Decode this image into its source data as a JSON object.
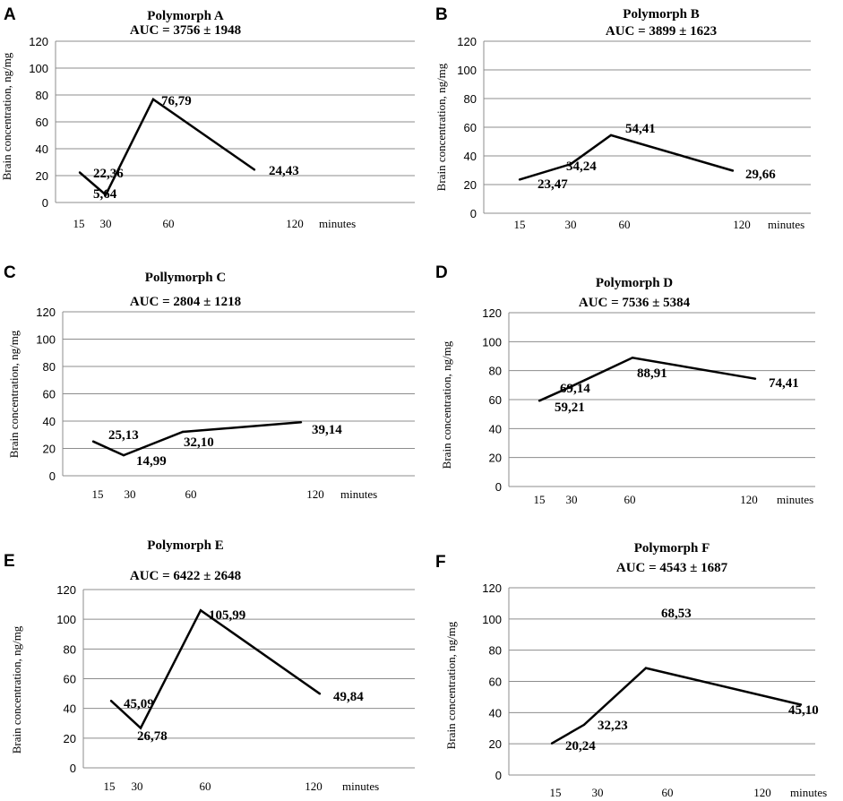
{
  "chart_data": [
    {
      "panel": "A",
      "type": "line",
      "title": "Polymorph A",
      "auc_prefix": "AUC =",
      "auc_mean": "3756",
      "auc_pm": "±",
      "auc_sd": "1948",
      "ylabel": "Brain concentration, ng/mg",
      "x_ticks": [
        "15",
        "30",
        "60",
        "120"
      ],
      "x_unit": "minutes",
      "x": [
        15,
        30,
        60,
        120
      ],
      "values": [
        22.36,
        5.64,
        76.79,
        24.43
      ],
      "data_labels": [
        "22,36",
        "5,64",
        "76,79",
        "24,43"
      ],
      "ylim": [
        0,
        120
      ],
      "y_ticks": [
        "0",
        "20",
        "40",
        "60",
        "80",
        "100",
        "120"
      ],
      "grid": true
    },
    {
      "panel": "B",
      "type": "line",
      "title": "Polymorph B",
      "auc_prefix": "AUC =",
      "auc_mean": "3899",
      "auc_pm": "±",
      "auc_sd": "1623",
      "ylabel": "Brain concentration, ng/mg",
      "x_ticks": [
        "15",
        "30",
        "60",
        "120"
      ],
      "x_unit": "minutes",
      "x": [
        15,
        30,
        60,
        120
      ],
      "values": [
        23.47,
        34.24,
        54.41,
        29.66
      ],
      "data_labels": [
        "23,47",
        "34,24",
        "54,41",
        "29,66"
      ],
      "ylim": [
        0,
        120
      ],
      "y_ticks": [
        "0",
        "20",
        "40",
        "60",
        "80",
        "100",
        "120"
      ],
      "grid": true
    },
    {
      "panel": "C",
      "type": "line",
      "title": "Pollymorph C",
      "auc_prefix": "AUC =",
      "auc_mean": "2804",
      "auc_pm": "±",
      "auc_sd": "1218",
      "ylabel": "Brain concentration, ng/mg",
      "x_ticks": [
        "15",
        "30",
        "60",
        "120"
      ],
      "x_unit": "minutes",
      "x": [
        15,
        30,
        60,
        120
      ],
      "values": [
        25.13,
        14.99,
        32.1,
        39.14
      ],
      "data_labels": [
        "25,13",
        "14,99",
        "32,10",
        "39,14"
      ],
      "ylim": [
        0,
        120
      ],
      "y_ticks": [
        "0",
        "20",
        "40",
        "60",
        "80",
        "100",
        "120"
      ],
      "grid": true
    },
    {
      "panel": "D",
      "type": "line",
      "title": "Polymorph D",
      "auc_prefix": "AUC =",
      "auc_mean": "7536",
      "auc_pm": "±",
      "auc_sd": "5384",
      "ylabel": "Brain concentration, ng/mg",
      "x_ticks": [
        "15",
        "30",
        "60",
        "120"
      ],
      "x_unit": "minutes",
      "x": [
        15,
        30,
        60,
        120
      ],
      "values": [
        59.21,
        69.14,
        88.91,
        74.41
      ],
      "data_labels": [
        "59,21",
        "69,14",
        "88,91",
        "74,41"
      ],
      "ylim": [
        0,
        120
      ],
      "y_ticks": [
        "0",
        "20",
        "40",
        "60",
        "80",
        "100",
        "120"
      ],
      "grid": true
    },
    {
      "panel": "E",
      "type": "line",
      "title": "Polymorph E",
      "auc_prefix": "AUC =",
      "auc_mean": "6422",
      "auc_pm": "±",
      "auc_sd": "2648",
      "ylabel": "Brain concentration, ng/mg",
      "x_ticks": [
        "15",
        "30",
        "60",
        "120"
      ],
      "x_unit": "minutes",
      "x": [
        15,
        30,
        60,
        120
      ],
      "values": [
        45.09,
        26.78,
        105.99,
        49.84
      ],
      "data_labels": [
        "45,09",
        "26,78",
        "105,99",
        "49,84"
      ],
      "ylim": [
        0,
        120
      ],
      "y_ticks": [
        "0",
        "20",
        "40",
        "60",
        "80",
        "100",
        "120"
      ],
      "grid": true
    },
    {
      "panel": "F",
      "type": "line",
      "title": "Polymorph F",
      "auc_prefix": "AUC =",
      "auc_mean": "4543",
      "auc_pm": "±",
      "auc_sd": "1687",
      "ylabel": "Brain concentration, ng/mg",
      "x_ticks": [
        "15",
        "30",
        "60",
        "120"
      ],
      "x_unit": "minutes",
      "x": [
        15,
        30,
        60,
        120
      ],
      "values": [
        20.24,
        32.23,
        68.53,
        45.1
      ],
      "data_labels": [
        "20,24",
        "32,23",
        "68,53",
        "45,10"
      ],
      "ylim": [
        0,
        120
      ],
      "y_ticks": [
        "0",
        "20",
        "40",
        "60",
        "80",
        "100",
        "120"
      ],
      "grid": true
    }
  ]
}
